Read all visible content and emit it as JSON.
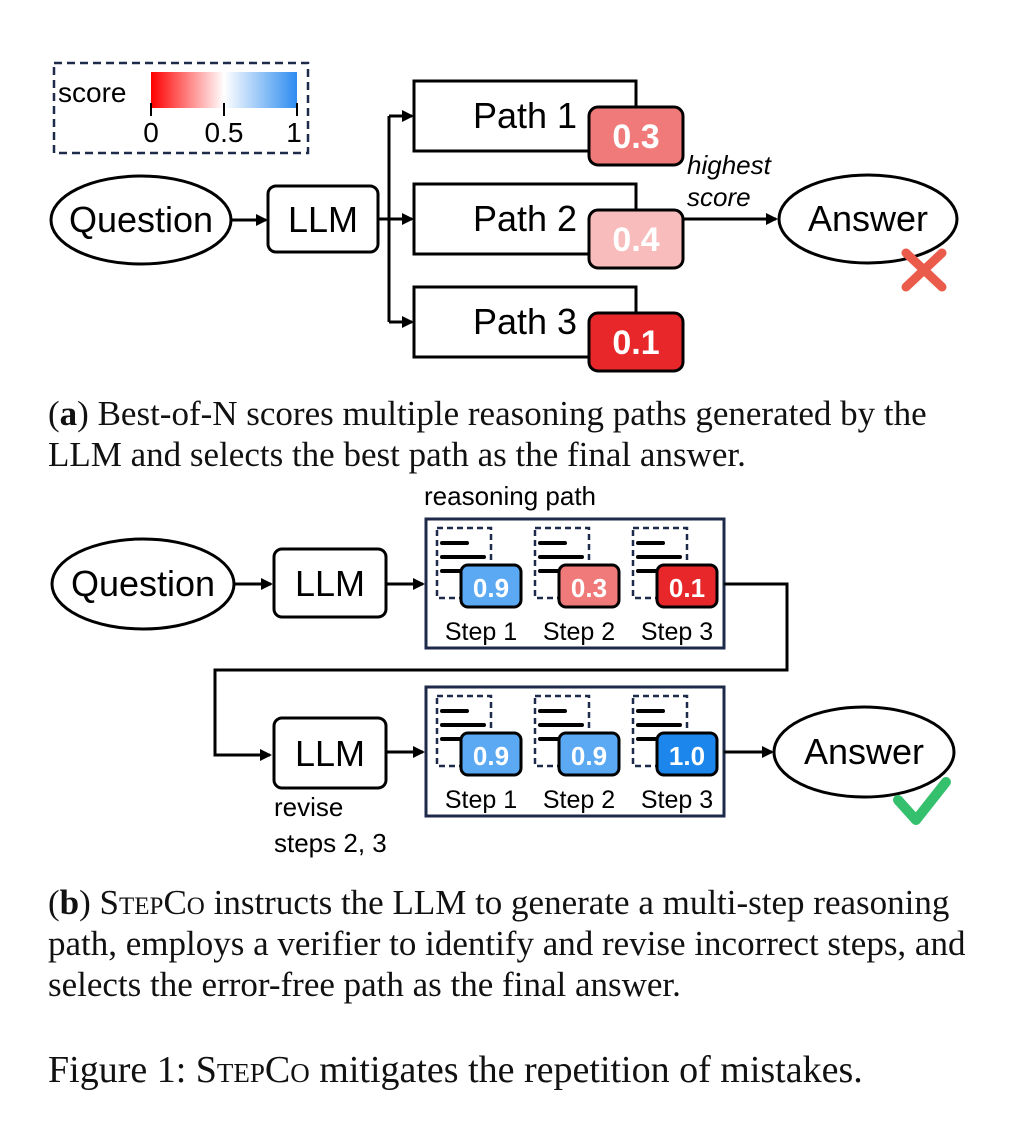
{
  "legend": {
    "title": "score",
    "ticks": [
      "0",
      "0.5",
      "1"
    ]
  },
  "part_a": {
    "question": "Question",
    "llm": "LLM",
    "paths": [
      {
        "label": "Path 1",
        "score": "0.3"
      },
      {
        "label": "Path 2",
        "score": "0.4"
      },
      {
        "label": "Path 3",
        "score": "0.1"
      }
    ],
    "annotation_line1": "highest",
    "annotation_line2": "score",
    "answer": "Answer",
    "caption_tag": "a",
    "caption_text": "Best-of-N scores multiple reasoning paths generated by the LLM and selects the best path as the final answer."
  },
  "part_b": {
    "question": "Question",
    "llm": "LLM",
    "path_title": "reasoning path",
    "steps_before": [
      {
        "label": "Step 1",
        "score": "0.9"
      },
      {
        "label": "Step 2",
        "score": "0.3"
      },
      {
        "label": "Step 3",
        "score": "0.1"
      }
    ],
    "llm_revise": "LLM",
    "revise_line1": "revise",
    "revise_line2": "steps 2, 3",
    "steps_after": [
      {
        "label": "Step 1",
        "score": "0.9"
      },
      {
        "label": "Step 2",
        "score": "0.9"
      },
      {
        "label": "Step 3",
        "score": "1.0"
      }
    ],
    "answer": "Answer",
    "caption_tag": "b",
    "caption_method": "StepCo",
    "caption_text": " instructs the LLM to generate a multi-step reasoning path, employs a verifier to identify and revise incorrect steps, and selects the error-free path as the final answer."
  },
  "figure": {
    "label": "Figure 1: ",
    "method": "StepCo",
    "text": " mitigates the repetition of mistakes."
  },
  "colors": {
    "score_0_1": "#e8272b",
    "score_0_3": "#f07a7a",
    "score_0_4": "#f8bcbc",
    "score_0_9": "#5aa9f2",
    "score_1_0": "#1c86ec",
    "box_border": "#1e2a4a",
    "wrong": "#ea5b4c",
    "right": "#35c06e"
  }
}
